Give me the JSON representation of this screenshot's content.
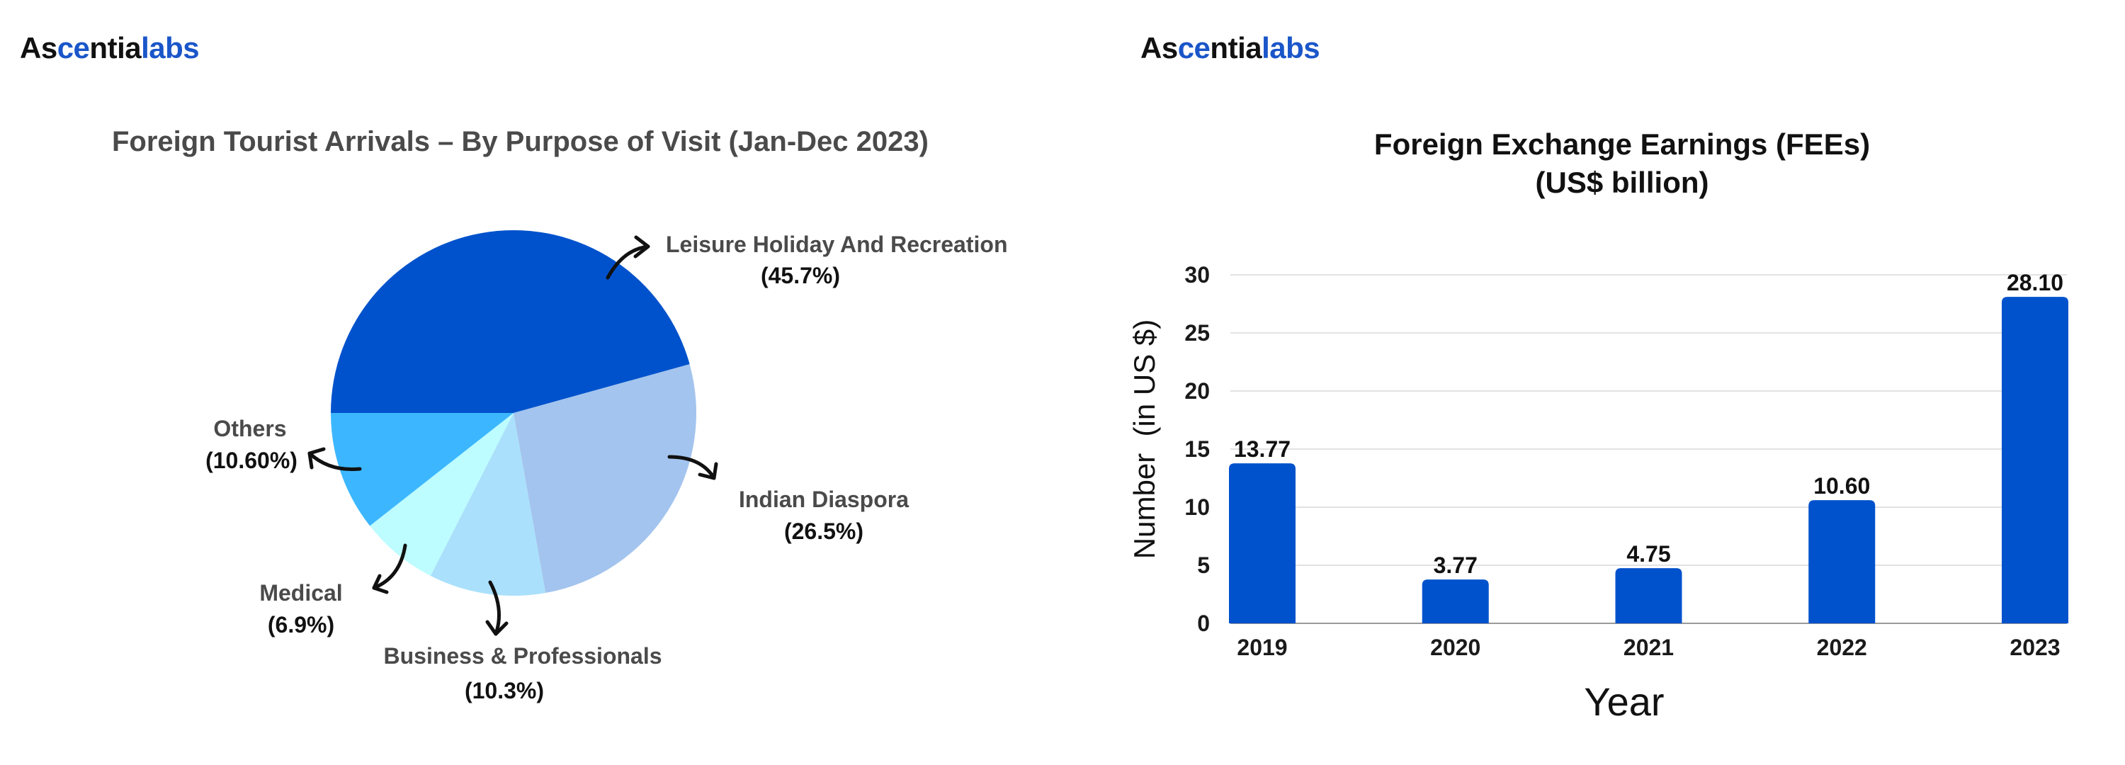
{
  "logo": {
    "part1": "As",
    "part2": "ce",
    "part3": "ntia",
    "part4": "labs"
  },
  "chart_data": [
    {
      "type": "pie",
      "title": "Foreign Tourist Arrivals – By Purpose of Visit (Jan-Dec 2023)",
      "slices": [
        {
          "label": "Leisure Holiday And Recreation",
          "pct_label": "(45.7%)",
          "value": 45.7,
          "color": "#0052cc"
        },
        {
          "label": "Indian Diaspora",
          "pct_label": "(26.5%)",
          "value": 26.5,
          "color": "#a3c4ee"
        },
        {
          "label": "Business & Professionals",
          "pct_label": "(10.3%)",
          "value": 10.3,
          "color": "#aae0fb"
        },
        {
          "label": "Medical",
          "pct_label": "(6.9%)",
          "value": 6.9,
          "color": "#bdfcff"
        },
        {
          "label": "Others",
          "pct_label": "(10.60%)",
          "value": 10.6,
          "color": "#3cb7ff"
        }
      ]
    },
    {
      "type": "bar",
      "title_line1": "Foreign Exchange Earnings (FEEs)",
      "title_line2": "(US$ billion)",
      "categories": [
        "2019",
        "2020",
        "2021",
        "2022",
        "2023"
      ],
      "values": [
        13.77,
        3.77,
        4.75,
        10.6,
        28.1
      ],
      "value_labels": [
        "13.77",
        "3.77",
        "4.75",
        "10.60",
        "28.10"
      ],
      "ylabel": "Number  (in US $)",
      "xlabel": "Year",
      "ylim": [
        0,
        30
      ],
      "yticks": [
        0,
        5,
        10,
        15,
        20,
        25,
        30
      ],
      "grid": true,
      "bar_color": "#0052cc"
    }
  ]
}
